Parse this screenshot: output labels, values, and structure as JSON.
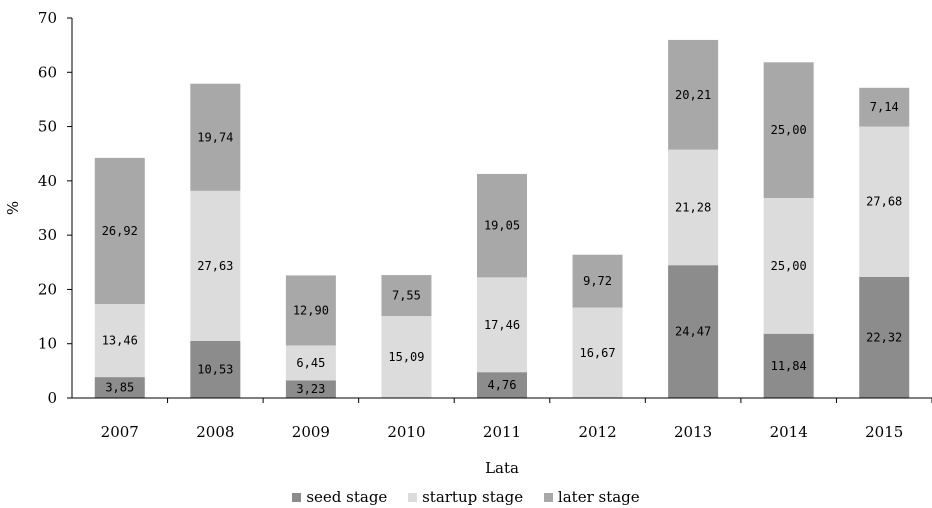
{
  "chart_data": {
    "type": "bar",
    "stacked": true,
    "title": "",
    "xlabel": "Lata",
    "ylabel": "%",
    "ylim": [
      0,
      70
    ],
    "yticks": [
      "0",
      "10",
      "20",
      "30",
      "40",
      "50",
      "60",
      "70"
    ],
    "categories": [
      "2007",
      "2008",
      "2009",
      "2010",
      "2011",
      "2012",
      "2013",
      "2014",
      "2015"
    ],
    "series": [
      {
        "name": "seed stage",
        "color": "#8c8c8c",
        "values": [
          3.85,
          10.53,
          3.23,
          null,
          4.76,
          null,
          24.47,
          11.84,
          22.32
        ],
        "labels": [
          "3,85",
          "10,53",
          "3,23",
          "",
          "4,76",
          "",
          "24,47",
          "11,84",
          "22,32"
        ]
      },
      {
        "name": "startup stage",
        "color": "#dcdcdc",
        "values": [
          13.46,
          27.63,
          6.45,
          15.09,
          17.46,
          16.67,
          21.28,
          25.0,
          27.68
        ],
        "labels": [
          "13,46",
          "27,63",
          "6,45",
          "15,09",
          "17,46",
          "16,67",
          "21,28",
          "25,00",
          "27,68"
        ]
      },
      {
        "name": "later stage",
        "color": "#a8a8a8",
        "values": [
          26.92,
          19.74,
          12.9,
          7.55,
          19.05,
          9.72,
          20.21,
          25.0,
          7.14
        ],
        "labels": [
          "26,92",
          "19,74",
          "12,90",
          "7,55",
          "19,05",
          "9,72",
          "20,21",
          "25,00",
          "7,14"
        ]
      }
    ],
    "grid": false,
    "legend_position": "bottom"
  }
}
